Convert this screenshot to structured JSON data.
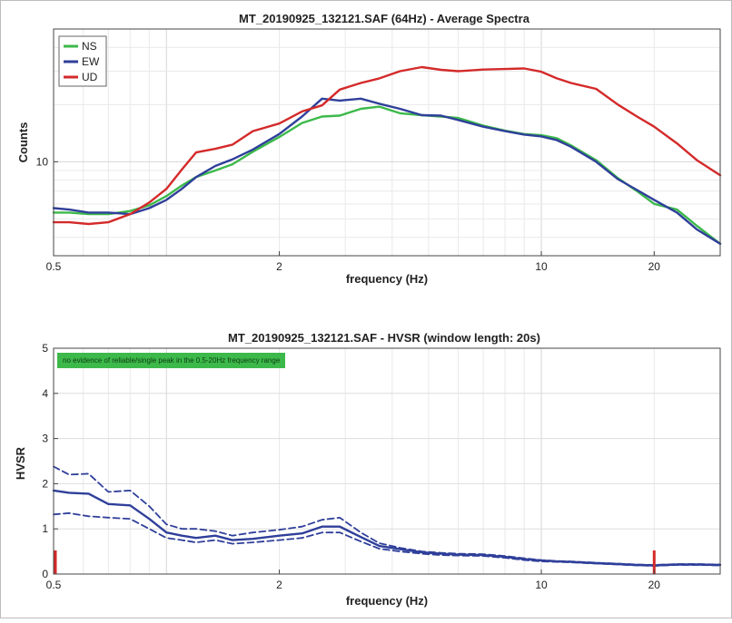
{
  "chart_data": [
    {
      "type": "line",
      "title": "MT_20190925_132121.SAF (64Hz) - Average Spectra",
      "xlabel": "frequency (Hz)",
      "ylabel": "Counts",
      "xscale": "log",
      "yscale": "log",
      "xlim": [
        0.5,
        30
      ],
      "ylim": [
        3.2,
        50
      ],
      "xticks": [
        0.5,
        2,
        10,
        20
      ],
      "xtick_labels": [
        "0.5",
        "2",
        "10",
        "20"
      ],
      "yticks": [
        10
      ],
      "ytick_labels": [
        "10"
      ],
      "grid": true,
      "legend": "top-left",
      "series": [
        {
          "name": "NS",
          "color": "#3cb94a",
          "x": [
            0.5,
            0.55,
            0.62,
            0.7,
            0.8,
            0.9,
            1.0,
            1.1,
            1.2,
            1.35,
            1.5,
            1.7,
            2.0,
            2.3,
            2.6,
            2.9,
            3.3,
            3.7,
            4.2,
            4.8,
            5.4,
            6.0,
            7.0,
            8.0,
            9.0,
            10.0,
            11.0,
            12.0,
            14.0,
            16.0,
            18.0,
            20.0,
            23.0,
            26.0,
            30.0
          ],
          "y": [
            5.4,
            5.4,
            5.3,
            5.3,
            5.5,
            5.9,
            6.6,
            7.5,
            8.3,
            9.0,
            9.7,
            11.3,
            13.5,
            16.0,
            17.3,
            17.5,
            19.0,
            19.5,
            18.0,
            17.6,
            17.3,
            17.0,
            15.5,
            14.6,
            14.0,
            13.8,
            13.3,
            12.2,
            10.2,
            8.2,
            7.0,
            6.0,
            5.6,
            4.6,
            3.7
          ]
        },
        {
          "name": "EW",
          "color": "#2f3f9a",
          "x": [
            0.5,
            0.55,
            0.62,
            0.7,
            0.8,
            0.9,
            1.0,
            1.1,
            1.2,
            1.35,
            1.5,
            1.7,
            2.0,
            2.3,
            2.6,
            2.9,
            3.3,
            3.7,
            4.2,
            4.8,
            5.4,
            6.0,
            7.0,
            8.0,
            9.0,
            10.0,
            11.0,
            12.0,
            14.0,
            16.0,
            18.0,
            20.0,
            23.0,
            26.0,
            30.0
          ],
          "y": [
            5.7,
            5.6,
            5.4,
            5.4,
            5.3,
            5.7,
            6.3,
            7.2,
            8.3,
            9.5,
            10.3,
            11.6,
            14.0,
            17.3,
            21.5,
            21.0,
            21.5,
            20.2,
            19.0,
            17.6,
            17.5,
            16.6,
            15.3,
            14.5,
            13.9,
            13.6,
            13.0,
            12.0,
            10.0,
            8.1,
            7.1,
            6.3,
            5.4,
            4.4,
            3.7
          ]
        },
        {
          "name": "UD",
          "color": "#d42a2a",
          "x": [
            0.5,
            0.55,
            0.62,
            0.7,
            0.8,
            0.9,
            1.0,
            1.1,
            1.2,
            1.35,
            1.5,
            1.7,
            2.0,
            2.3,
            2.6,
            2.9,
            3.3,
            3.7,
            4.2,
            4.8,
            5.4,
            6.0,
            7.0,
            8.0,
            9.0,
            10.0,
            11.0,
            12.0,
            14.0,
            16.0,
            18.0,
            20.0,
            23.0,
            26.0,
            30.0
          ],
          "y": [
            4.8,
            4.8,
            4.7,
            4.8,
            5.3,
            6.1,
            7.2,
            9.1,
            11.2,
            11.7,
            12.3,
            14.5,
            15.9,
            18.4,
            19.8,
            24.0,
            26.0,
            27.5,
            30.0,
            31.5,
            30.5,
            30.0,
            30.6,
            30.8,
            31.0,
            29.8,
            27.5,
            26.0,
            24.2,
            20.0,
            17.3,
            15.3,
            12.5,
            10.2,
            8.5
          ]
        }
      ]
    },
    {
      "type": "line",
      "title": "MT_20190925_132121.SAF - HVSR (window length: 20s)",
      "xlabel": "frequency (Hz)",
      "ylabel": "HVSR",
      "xscale": "log",
      "xlim": [
        0.5,
        30
      ],
      "ylim": [
        0,
        5
      ],
      "xticks": [
        0.5,
        2,
        10,
        20
      ],
      "xtick_labels": [
        "0.5",
        "2",
        "10",
        "20"
      ],
      "yticks": [
        0,
        1,
        2,
        3,
        4,
        5
      ],
      "ytick_labels": [
        "0",
        "1",
        "2",
        "3",
        "4",
        "5"
      ],
      "grid": true,
      "annotation": "no evidence of reliable/single peak in the 0.5-20Hz frequency range",
      "markers_x": [
        0.5,
        20
      ],
      "marker_color": "#d42a2a",
      "series": [
        {
          "color": "#2f3f9a",
          "style": "solid",
          "x": [
            0.5,
            0.55,
            0.62,
            0.7,
            0.8,
            0.9,
            1.0,
            1.1,
            1.2,
            1.35,
            1.5,
            1.7,
            2.0,
            2.3,
            2.6,
            2.9,
            3.3,
            3.7,
            4.2,
            4.8,
            5.4,
            6.0,
            7.0,
            8.0,
            9.0,
            10.0,
            11.0,
            12.0,
            14.0,
            16.0,
            18.0,
            20.0,
            23.0,
            26.0,
            30.0
          ],
          "y": [
            1.85,
            1.8,
            1.78,
            1.55,
            1.52,
            1.22,
            0.92,
            0.85,
            0.8,
            0.85,
            0.75,
            0.78,
            0.85,
            0.9,
            1.05,
            1.05,
            0.82,
            0.62,
            0.55,
            0.48,
            0.45,
            0.43,
            0.42,
            0.38,
            0.33,
            0.3,
            0.28,
            0.27,
            0.24,
            0.22,
            0.2,
            0.19,
            0.21,
            0.21,
            0.2
          ]
        },
        {
          "color": "#2f3f9a",
          "style": "dashed",
          "x": [
            0.5,
            0.55,
            0.62,
            0.7,
            0.8,
            0.9,
            1.0,
            1.1,
            1.2,
            1.35,
            1.5,
            1.7,
            2.0,
            2.3,
            2.6,
            2.9,
            3.3,
            3.7,
            4.2,
            4.8,
            5.4,
            6.0,
            7.0,
            8.0,
            9.0,
            10.0,
            11.0,
            12.0,
            14.0,
            16.0,
            18.0,
            20.0,
            23.0,
            26.0,
            30.0
          ],
          "y": [
            2.38,
            2.2,
            2.22,
            1.82,
            1.85,
            1.5,
            1.1,
            1.0,
            1.0,
            0.95,
            0.85,
            0.92,
            0.98,
            1.05,
            1.2,
            1.25,
            0.92,
            0.68,
            0.58,
            0.5,
            0.47,
            0.45,
            0.44,
            0.4,
            0.35,
            0.31,
            0.29,
            0.28,
            0.25,
            0.23,
            0.21,
            0.2,
            0.22,
            0.22,
            0.21
          ]
        },
        {
          "color": "#2f3f9a",
          "style": "dashed",
          "x": [
            0.5,
            0.55,
            0.62,
            0.7,
            0.8,
            0.9,
            1.0,
            1.1,
            1.2,
            1.35,
            1.5,
            1.7,
            2.0,
            2.3,
            2.6,
            2.9,
            3.3,
            3.7,
            4.2,
            4.8,
            5.4,
            6.0,
            7.0,
            8.0,
            9.0,
            10.0,
            11.0,
            12.0,
            14.0,
            16.0,
            18.0,
            20.0,
            23.0,
            26.0,
            30.0
          ],
          "y": [
            1.32,
            1.35,
            1.28,
            1.25,
            1.22,
            1.0,
            0.8,
            0.75,
            0.7,
            0.75,
            0.67,
            0.7,
            0.75,
            0.8,
            0.92,
            0.92,
            0.72,
            0.56,
            0.5,
            0.45,
            0.42,
            0.41,
            0.4,
            0.36,
            0.31,
            0.28,
            0.27,
            0.26,
            0.23,
            0.21,
            0.19,
            0.18,
            0.2,
            0.2,
            0.19
          ]
        }
      ]
    }
  ]
}
